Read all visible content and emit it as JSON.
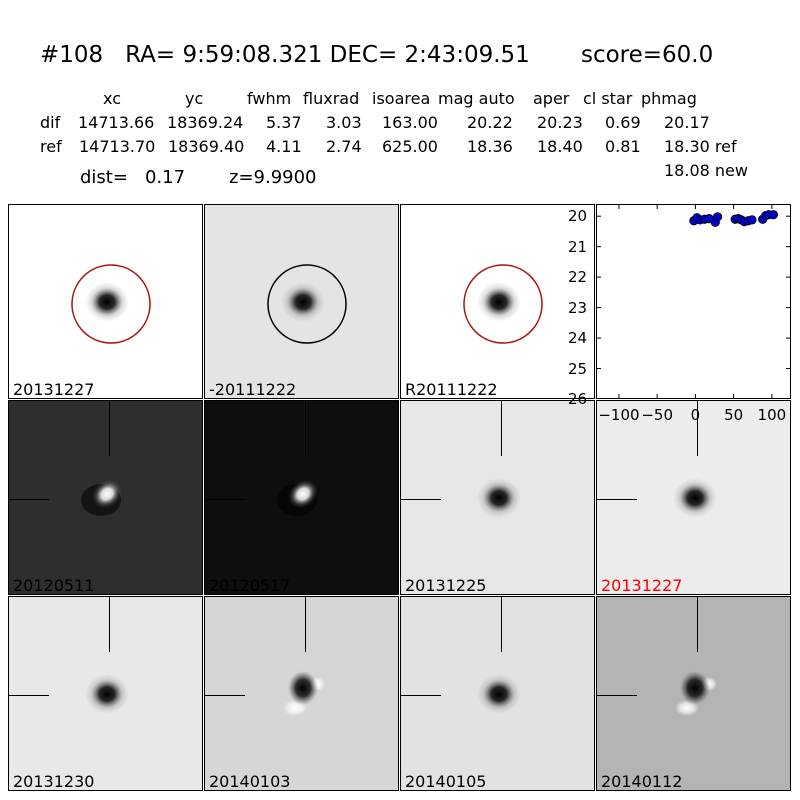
{
  "header": {
    "title": "#108   RA= 9:59:08.321 DEC= 2:43:09.51       score=60.0"
  },
  "table": {
    "col_headers": [
      "xc",
      "yc",
      "fwhm",
      "fluxrad",
      "isoarea",
      "mag auto",
      "aper",
      "cl star",
      "phmag"
    ],
    "rows": [
      {
        "label": "dif",
        "values": [
          "14713.66",
          "18369.24",
          "5.37",
          "3.03",
          "163.00",
          "20.22",
          "20.23",
          "0.69",
          "20.17"
        ]
      },
      {
        "label": "ref",
        "values": [
          "14713.70",
          "18369.40",
          "4.11",
          "2.74",
          "625.00",
          "18.36",
          "18.40",
          "0.81",
          "18.30 ref"
        ]
      }
    ],
    "extra_phmag": "18.08 new",
    "dist_label": "dist=",
    "dist_value": "0.17",
    "z_label": "z=9.9900"
  },
  "panels": [
    {
      "label": "20131227",
      "bg": "#ffffff",
      "circle": "#aa1111",
      "blob": "dark"
    },
    {
      "label": "-20111222",
      "bg": "#e4e4e4",
      "circle": "#000000",
      "blob": "dark"
    },
    {
      "label": "R20111222",
      "bg": "#ffffff",
      "circle": "#aa1111",
      "blob": "dark"
    },
    {
      "label": "20120511",
      "bg": "#2e2e2e",
      "blob": "bright",
      "cross": true
    },
    {
      "label": "20120517",
      "bg": "#0e0e0e",
      "blob": "bright",
      "cross": true
    },
    {
      "label": "20131225",
      "bg": "#e6e6e6",
      "blob": "dark",
      "cross": true
    },
    {
      "label": "20131227",
      "bg": "#ececec",
      "blob": "dark",
      "cross": true,
      "label_color": "#ff0000"
    },
    {
      "label": "20131230",
      "bg": "#e8e8e8",
      "blob": "dark",
      "cross": true
    },
    {
      "label": "20140103",
      "bg": "#d6d6d6",
      "blob": "dipole",
      "cross": true
    },
    {
      "label": "20140105",
      "bg": "#e2e2e2",
      "blob": "dark",
      "cross": true
    },
    {
      "label": "20140112",
      "bg": "#b4b4b4",
      "blob": "dipole",
      "cross": true
    }
  ],
  "chart_data": {
    "type": "scatter",
    "y_inverted": true,
    "ylim": [
      26,
      19.6
    ],
    "xlim": [
      -130,
      125
    ],
    "yticks": [
      "20",
      "21",
      "22",
      "23",
      "24",
      "25",
      "26"
    ],
    "xticks": [
      "−100",
      "−50",
      "0",
      "50",
      "100"
    ],
    "xtick_values": [
      -100,
      -50,
      0,
      50,
      100
    ],
    "ytick_values": [
      20,
      21,
      22,
      23,
      24,
      25,
      26
    ],
    "marker_color": "#0000cc",
    "points": [
      {
        "x": -2,
        "y": 20.15
      },
      {
        "x": 2,
        "y": 20.05
      },
      {
        "x": 6,
        "y": 20.12
      },
      {
        "x": 12,
        "y": 20.1
      },
      {
        "x": 18,
        "y": 20.08
      },
      {
        "x": 26,
        "y": 20.2
      },
      {
        "x": 29,
        "y": 20.02
      },
      {
        "x": 52,
        "y": 20.1
      },
      {
        "x": 56,
        "y": 20.08
      },
      {
        "x": 60,
        "y": 20.12
      },
      {
        "x": 64,
        "y": 20.18
      },
      {
        "x": 69,
        "y": 20.15
      },
      {
        "x": 74,
        "y": 20.12
      },
      {
        "x": 88,
        "y": 20.1
      },
      {
        "x": 92,
        "y": 19.98
      },
      {
        "x": 96,
        "y": 19.95
      },
      {
        "x": 102,
        "y": 19.95
      }
    ]
  }
}
